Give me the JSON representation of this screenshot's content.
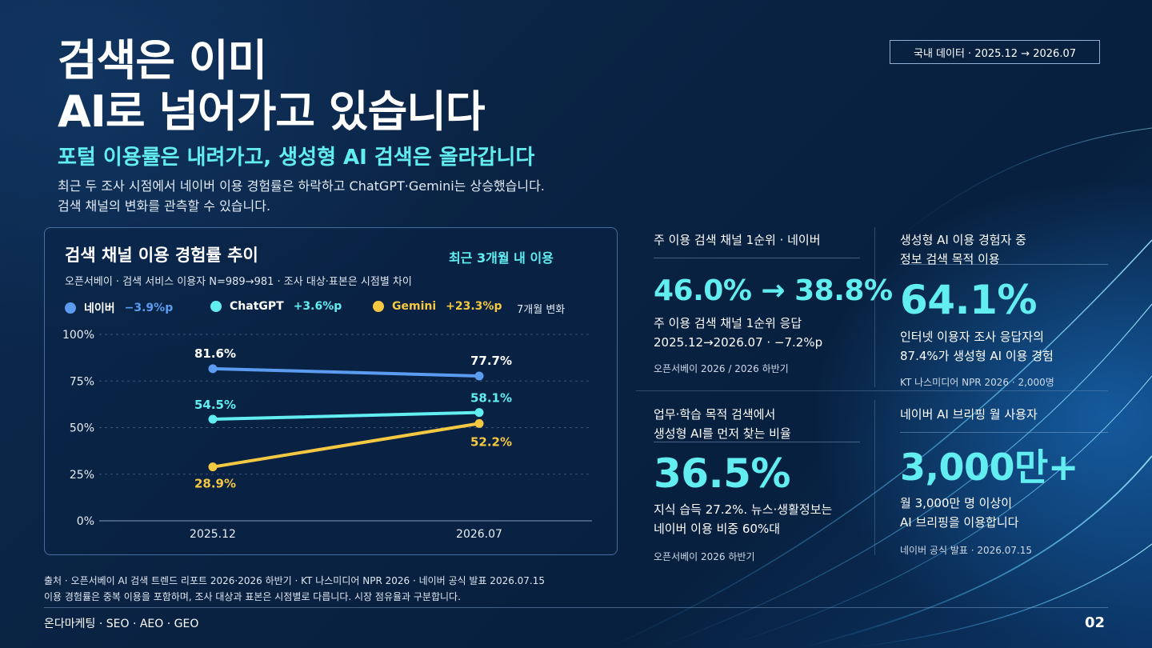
{
  "header": {
    "title_line1": "검색은 이미",
    "title_line2": "AI로 넘어가고 있습니다",
    "subtitle": "포털 이용률은 내려가고, 생성형 AI 검색은 올라갑니다",
    "desc_line1": "최근 두 조사 시점에서 네이버 이용 경험률은 하락하고 ChatGPT·Gemini는 상승했습니다.",
    "desc_line2": "검색 채널의 변화를 관측할 수 있습니다.",
    "period_badge": "국내 데이터 · 2025.12 → 2026.07"
  },
  "chart_card": {
    "title": "검색 채널 이용 경험률 추이",
    "badge": "최근 3개월 내 이용",
    "subtitle": "오픈서베이 · 검색 서비스 이용자 N=989→981 · 조사 대상·표본은 시점별 차이",
    "legend_note": "7개월 변화",
    "legend": [
      {
        "name": "네이버",
        "change": "−3.9%p",
        "color": "#5b9cf0"
      },
      {
        "name": "ChatGPT",
        "change": "+3.6%p",
        "color": "#62eef0"
      },
      {
        "name": "Gemini",
        "change": "+23.3%p",
        "color": "#f5c842"
      }
    ]
  },
  "chart_data": {
    "type": "line",
    "title": "검색 채널 이용 경험률 추이",
    "x": [
      "2025.12",
      "2026.07"
    ],
    "yticks": [
      "100%",
      "75%",
      "50%",
      "25%",
      "0%"
    ],
    "ylim": [
      0,
      100
    ],
    "grid": true,
    "legend_position": "top",
    "series": [
      {
        "name": "네이버",
        "values": [
          81.6,
          77.7
        ],
        "labels": [
          "81.6%",
          "77.7%"
        ],
        "color": "#5b9cf0"
      },
      {
        "name": "ChatGPT",
        "values": [
          54.5,
          58.1
        ],
        "labels": [
          "54.5%",
          "58.1%"
        ],
        "color": "#62eef0"
      },
      {
        "name": "Gemini",
        "values": [
          28.9,
          52.2
        ],
        "labels": [
          "28.9%",
          "52.2%"
        ],
        "color": "#f5c842"
      }
    ]
  },
  "kpis": [
    {
      "label_line1": "주 이용 검색 채널 1순위 · 네이버",
      "label_line2": "",
      "value": "46.0% → 38.8%",
      "desc_line1": "주 이용 검색 채널 1순위 응답",
      "desc_line2": "2025.12→2026.07 · −7.2%p",
      "source": "오픈서베이 2026 / 2026 하반기"
    },
    {
      "label_line1": "생성형 AI 이용 경험자 중",
      "label_line2": "정보 검색 목적 이용",
      "value": "64.1%",
      "desc_line1": "인터넷 이용자 조사 응답자의",
      "desc_line2": "87.4%가 생성형 AI 이용 경험",
      "source": "KT 나스미디어 NPR 2026 · 2,000명"
    },
    {
      "label_line1": "업무·학습 목적 검색에서",
      "label_line2": "생성형 AI를 먼저 찾는 비율",
      "value": "36.5%",
      "desc_line1": "지식 습득 27.2%. 뉴스·생활정보는",
      "desc_line2": "네이버 이용 비중 60%대",
      "source": "오픈서베이 2026 하반기"
    },
    {
      "label_line1": "네이버 AI 브리핑 월 사용자",
      "label_line2": "",
      "value": "3,000만+",
      "desc_line1": "월 3,000만 명 이상이",
      "desc_line2": "AI 브리핑을 이용합니다",
      "source": "네이버 공식 발표 · 2026.07.15"
    }
  ],
  "sources": {
    "line1": "출처 · 오픈서베이 AI 검색 트렌드 리포트 2026·2026 하반기 · KT 나스미디어 NPR 2026 · 네이버 공식 발표 2026.07.15",
    "line2": "이용 경험률은 중복 이용을 포함하며, 조사 대상과 표본은 시점별로 다릅니다. 시장 점유율과 구분합니다."
  },
  "footer": {
    "brand": "온다마케팅 · SEO · AEO · GEO",
    "page": "02"
  },
  "colors": {
    "accent": "#62eef0",
    "naver": "#5b9cf0",
    "gemini": "#f5c842",
    "background": "#0a2444"
  }
}
